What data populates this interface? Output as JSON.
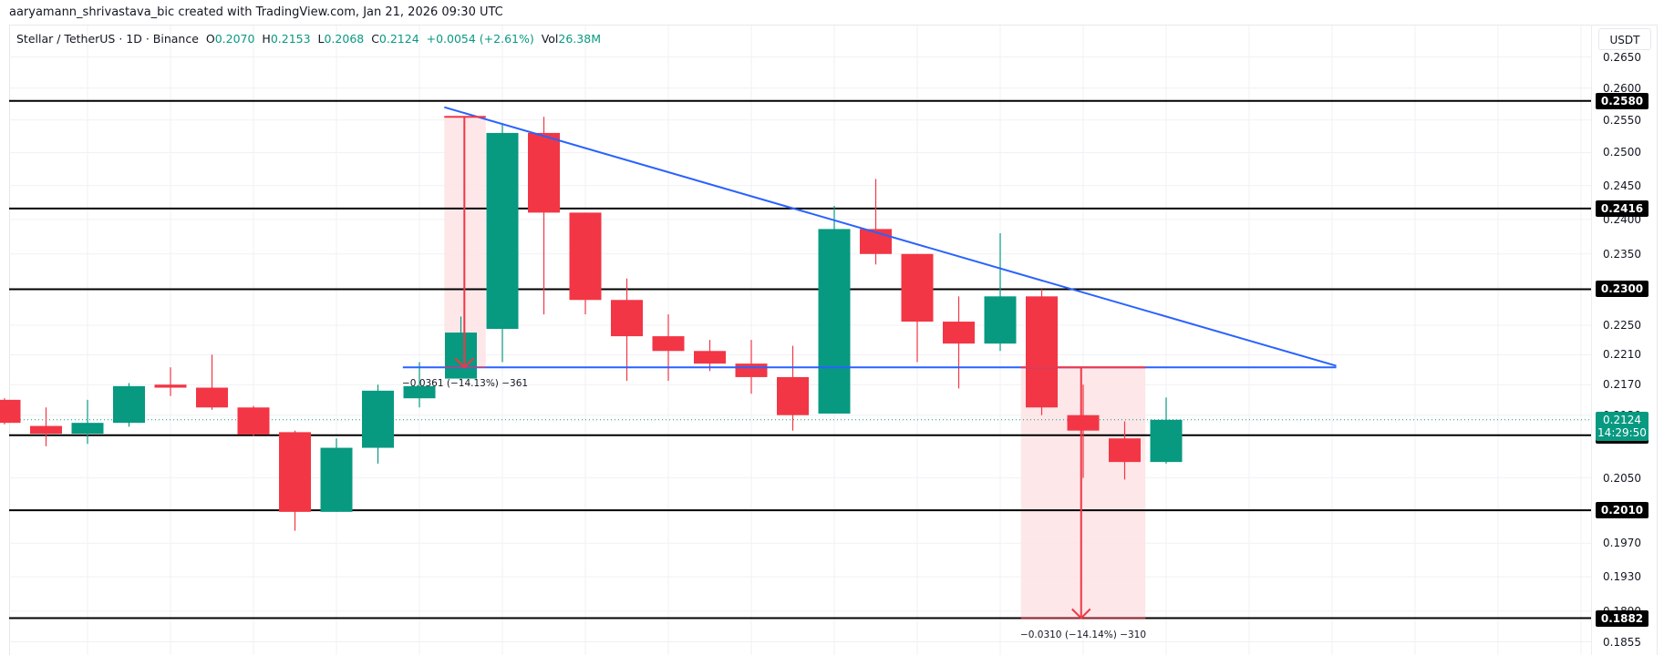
{
  "header": {
    "credit": "aaryamann_shrivastava_bic created with TradingView.com, Jan 21, 2026 09:30 UTC"
  },
  "legend": {
    "symbol": "Stellar / TetherUS · 1D · Binance",
    "o_label": "O",
    "o_value": "0.2070",
    "h_label": "H",
    "h_value": "0.2153",
    "l_label": "L",
    "l_value": "0.2068",
    "c_label": "C",
    "c_value": "0.2124",
    "change": "+0.0054 (+2.61%)",
    "vol_label": "Vol",
    "vol_value": "26.38M"
  },
  "axis": {
    "currency": "USDT",
    "ticks": [
      "0.2650",
      "0.2600",
      "0.2550",
      "0.2500",
      "0.2450",
      "0.2400",
      "0.2350",
      "0.2250",
      "0.2210",
      "0.2170",
      "0.2130",
      "0.2050",
      "0.1970",
      "0.1930",
      "0.1890",
      "0.1855"
    ]
  },
  "last_price": {
    "price": "0.2124",
    "countdown": "14:29:50"
  },
  "colors": {
    "up": "#089981",
    "down": "#f23645",
    "trend": "#2962ff",
    "level": "#000000",
    "measure_fill": "#fde3e5"
  },
  "chart_data": {
    "type": "candlestick",
    "title": "Stellar / TetherUS · 1D · Binance",
    "xlabel": "",
    "ylabel": "USDT",
    "yscale": "log",
    "ylim": [
      0.184,
      0.268
    ],
    "grid": true,
    "candles": [
      {
        "o": 0.215,
        "h": 0.2152,
        "l": 0.2118,
        "c": 0.212
      },
      {
        "o": 0.2116,
        "h": 0.214,
        "l": 0.209,
        "c": 0.2106
      },
      {
        "o": 0.2106,
        "h": 0.215,
        "l": 0.2093,
        "c": 0.212
      },
      {
        "o": 0.212,
        "h": 0.2172,
        "l": 0.2115,
        "c": 0.2168
      },
      {
        "o": 0.217,
        "h": 0.2193,
        "l": 0.2155,
        "c": 0.2166
      },
      {
        "o": 0.2166,
        "h": 0.221,
        "l": 0.2137,
        "c": 0.214
      },
      {
        "o": 0.214,
        "h": 0.2142,
        "l": 0.2103,
        "c": 0.2105
      },
      {
        "o": 0.2108,
        "h": 0.211,
        "l": 0.1985,
        "c": 0.2008
      },
      {
        "o": 0.2008,
        "h": 0.21,
        "l": 0.2008,
        "c": 0.2088
      },
      {
        "o": 0.2088,
        "h": 0.217,
        "l": 0.2068,
        "c": 0.2162
      },
      {
        "o": 0.2152,
        "h": 0.22,
        "l": 0.214,
        "c": 0.2168
      },
      {
        "o": 0.2178,
        "h": 0.2262,
        "l": 0.2178,
        "c": 0.224
      },
      {
        "o": 0.2245,
        "h": 0.2545,
        "l": 0.22,
        "c": 0.253
      },
      {
        "o": 0.253,
        "h": 0.2555,
        "l": 0.2265,
        "c": 0.241
      },
      {
        "o": 0.241,
        "h": 0.241,
        "l": 0.2265,
        "c": 0.2285
      },
      {
        "o": 0.2285,
        "h": 0.2315,
        "l": 0.2175,
        "c": 0.2235
      },
      {
        "o": 0.2235,
        "h": 0.2265,
        "l": 0.2175,
        "c": 0.2215
      },
      {
        "o": 0.2215,
        "h": 0.223,
        "l": 0.2188,
        "c": 0.2198
      },
      {
        "o": 0.2198,
        "h": 0.223,
        "l": 0.2158,
        "c": 0.218
      },
      {
        "o": 0.218,
        "h": 0.2222,
        "l": 0.211,
        "c": 0.213
      },
      {
        "o": 0.2132,
        "h": 0.242,
        "l": 0.2132,
        "c": 0.2386
      },
      {
        "o": 0.2386,
        "h": 0.246,
        "l": 0.2335,
        "c": 0.235
      },
      {
        "o": 0.235,
        "h": 0.235,
        "l": 0.22,
        "c": 0.2255
      },
      {
        "o": 0.2255,
        "h": 0.229,
        "l": 0.2165,
        "c": 0.2225
      },
      {
        "o": 0.2225,
        "h": 0.238,
        "l": 0.2215,
        "c": 0.229
      },
      {
        "o": 0.229,
        "h": 0.23,
        "l": 0.213,
        "c": 0.214
      },
      {
        "o": 0.213,
        "h": 0.217,
        "l": 0.205,
        "c": 0.211
      },
      {
        "o": 0.21,
        "h": 0.2122,
        "l": 0.2048,
        "c": 0.207
      },
      {
        "o": 0.207,
        "h": 0.2153,
        "l": 0.2068,
        "c": 0.2124
      }
    ],
    "horizontal_levels": [
      "0.2580",
      "0.2416",
      "0.2300",
      "0.2104",
      "0.2010",
      "0.1882"
    ],
    "support_line": {
      "price": 0.2193,
      "from_index": 10.6,
      "to_index": 33.1
    },
    "trendline": {
      "from": {
        "index": 11.6,
        "price": 0.257
      },
      "to": {
        "index": 33.1,
        "price": 0.2195
      }
    },
    "measurements": [
      {
        "from_index": 11.6,
        "to_index": 12.6,
        "top": 0.2555,
        "bottom": 0.2193,
        "label": "−0.0361 (−14.13%) −361"
      },
      {
        "from_index": 25.5,
        "to_index": 28.5,
        "top": 0.2193,
        "bottom": 0.1882,
        "label": "−0.0310 (−14.14%) −310"
      }
    ]
  }
}
